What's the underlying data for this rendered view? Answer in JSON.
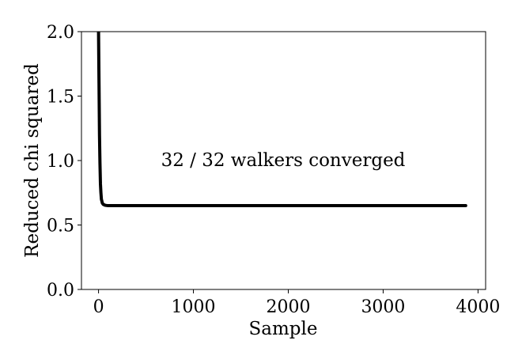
{
  "chart_data": {
    "type": "line",
    "title": "",
    "xlabel": "Sample",
    "ylabel": "Reduced chi squared",
    "xlim": [
      -180,
      4080
    ],
    "ylim": [
      0.0,
      2.0
    ],
    "xticks": [
      0,
      1000,
      2000,
      3000,
      4000
    ],
    "yticks": [
      0.0,
      0.5,
      1.0,
      1.5,
      2.0
    ],
    "xtick_labels": [
      "0",
      "1000",
      "2000",
      "3000",
      "4000"
    ],
    "ytick_labels": [
      "0.0",
      "0.5",
      "1.0",
      "1.5",
      "2.0"
    ],
    "grid": false,
    "annotation": "32 / 32 walkers converged",
    "line_color": "#000000",
    "series": [
      {
        "x": [
          0,
          5,
          10,
          15,
          20,
          25,
          30,
          40,
          50,
          70,
          100,
          200,
          500,
          1000,
          1500,
          2000,
          2500,
          3000,
          3500,
          3870
        ],
        "values": [
          2.0,
          1.6,
          1.2,
          0.98,
          0.82,
          0.75,
          0.7,
          0.67,
          0.66,
          0.653,
          0.65,
          0.65,
          0.65,
          0.65,
          0.65,
          0.65,
          0.65,
          0.65,
          0.65,
          0.65
        ]
      }
    ]
  }
}
